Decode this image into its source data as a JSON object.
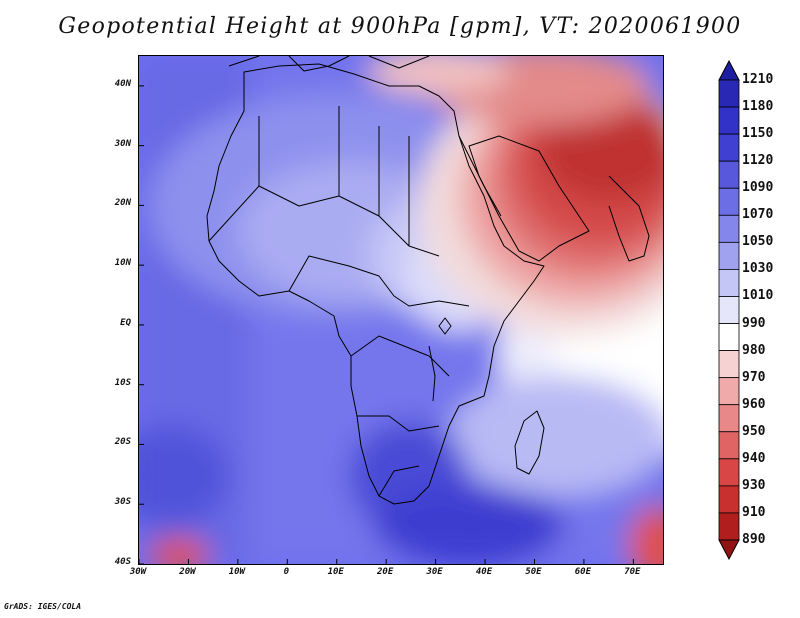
{
  "title": "Geopotential Height at 900hPa [gpm], VT: 2020061900",
  "credit": "GrADS: IGES/COLA",
  "map": {
    "projection": "latlon",
    "lon_range": [
      -30,
      76
    ],
    "lat_range": [
      -40,
      45
    ],
    "lat_ticks": [
      {
        "value": 40,
        "label": "40N"
      },
      {
        "value": 30,
        "label": "30N"
      },
      {
        "value": 20,
        "label": "20N"
      },
      {
        "value": 10,
        "label": "10N"
      },
      {
        "value": 0,
        "label": "EQ"
      },
      {
        "value": -10,
        "label": "10S"
      },
      {
        "value": -20,
        "label": "20S"
      },
      {
        "value": -30,
        "label": "30S"
      },
      {
        "value": -40,
        "label": "40S"
      }
    ],
    "lon_ticks": [
      {
        "value": -30,
        "label": "30W"
      },
      {
        "value": -20,
        "label": "20W"
      },
      {
        "value": -10,
        "label": "10W"
      },
      {
        "value": 0,
        "label": "0"
      },
      {
        "value": 10,
        "label": "10E"
      },
      {
        "value": 20,
        "label": "20E"
      },
      {
        "value": 30,
        "label": "30E"
      },
      {
        "value": 40,
        "label": "40E"
      },
      {
        "value": 50,
        "label": "50E"
      },
      {
        "value": 60,
        "label": "60E"
      },
      {
        "value": 70,
        "label": "70E"
      }
    ],
    "field": "geopotential height",
    "level": "900hPa",
    "units": "gpm",
    "valid_time": "2020061900"
  },
  "legend": {
    "levels": [
      "1210",
      "1180",
      "1150",
      "1120",
      "1090",
      "1070",
      "1050",
      "1030",
      "1010",
      "990",
      "980",
      "970",
      "960",
      "950",
      "940",
      "930",
      "910",
      "890"
    ],
    "colors": [
      "#1e1ea0",
      "#2828b4",
      "#3232c8",
      "#4040d2",
      "#5858dc",
      "#6c6ee6",
      "#8486ec",
      "#a0a2f0",
      "#c4c6f6",
      "#e6e6fa",
      "#ffffff",
      "#f6d2d2",
      "#f0aaaa",
      "#e88888",
      "#e06464",
      "#d84646",
      "#c83030",
      "#b01e1e",
      "#901414"
    ]
  }
}
